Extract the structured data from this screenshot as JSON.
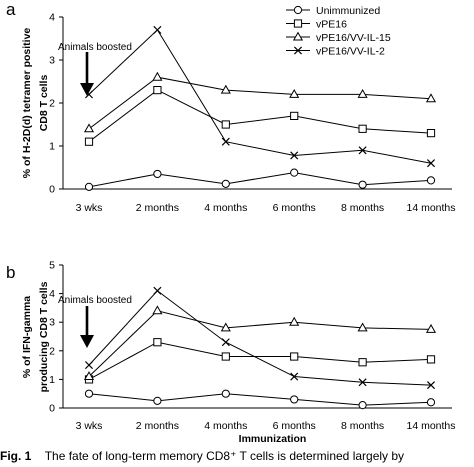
{
  "chart_data": [
    {
      "type": "line",
      "panel": "a",
      "categories": [
        "3 wks",
        "2 months",
        "4 months",
        "6 months",
        "8 months",
        "14 months"
      ],
      "ylabel_lines": [
        "% of H-2D(d) tetramer positive",
        "CD8 T cells"
      ],
      "xlabel": "",
      "ylim": [
        0,
        4
      ],
      "yticks": [
        "0",
        "1",
        "2",
        "3",
        "4"
      ],
      "legend_placement": "top-right",
      "annotation": "Animals boosted",
      "series": [
        {
          "name": "Unimmunized",
          "marker": "circle",
          "values": [
            0.05,
            0.35,
            0.12,
            0.38,
            0.1,
            0.2
          ]
        },
        {
          "name": "vPE16",
          "marker": "square",
          "values": [
            1.1,
            2.3,
            1.5,
            1.7,
            1.4,
            1.3
          ]
        },
        {
          "name": "vPE16/VV-IL-15",
          "marker": "triangle",
          "values": [
            1.4,
            2.6,
            2.3,
            2.2,
            2.2,
            2.1
          ]
        },
        {
          "name": "vPE16/VV-IL-2",
          "marker": "x",
          "values": [
            2.2,
            3.7,
            1.1,
            0.78,
            0.9,
            0.6
          ]
        }
      ]
    },
    {
      "type": "line",
      "panel": "b",
      "categories": [
        "3 wks",
        "2 months",
        "4 months",
        "6 months",
        "8 months",
        "14 months"
      ],
      "ylabel_lines": [
        "% of IFN-gamma",
        "producing CD8 T cells"
      ],
      "xlabel": "Immunization",
      "ylim": [
        0,
        5
      ],
      "yticks": [
        "0",
        "1",
        "2",
        "3",
        "4",
        "5"
      ],
      "annotation": "Animals boosted",
      "series": [
        {
          "name": "Unimmunized",
          "marker": "circle",
          "values": [
            0.5,
            0.25,
            0.5,
            0.3,
            0.1,
            0.2
          ]
        },
        {
          "name": "vPE16",
          "marker": "square",
          "values": [
            1.0,
            2.3,
            1.8,
            1.8,
            1.6,
            1.7
          ]
        },
        {
          "name": "vPE16/VV-IL-15",
          "marker": "triangle",
          "values": [
            1.1,
            3.4,
            2.8,
            3.0,
            2.8,
            2.75
          ]
        },
        {
          "name": "vPE16/VV-IL-2",
          "marker": "x",
          "values": [
            1.5,
            4.1,
            2.3,
            1.1,
            0.9,
            0.8
          ]
        }
      ]
    }
  ],
  "caption": {
    "label": "Fig. 1",
    "text": "The fate of long-term memory CD8⁺ T cells is determined largely by"
  }
}
